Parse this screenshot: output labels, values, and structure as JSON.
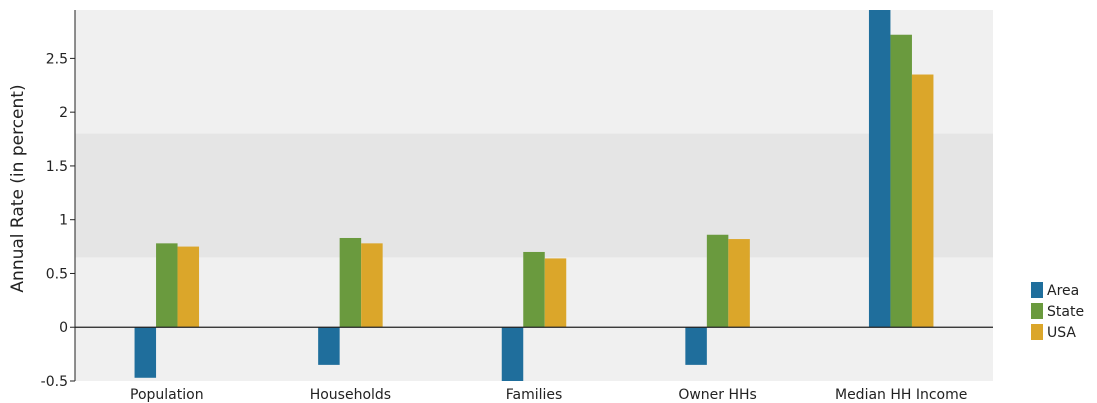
{
  "chart_data": {
    "type": "bar",
    "title": "",
    "xlabel": "",
    "ylabel": "Annual Rate (in percent)",
    "categories": [
      "Population",
      "Households",
      "Families",
      "Owner HHs",
      "Median HH Income"
    ],
    "series": [
      {
        "name": "Area",
        "color": "#1f6e9c",
        "values": [
          -0.47,
          -0.35,
          -0.5,
          -0.35,
          2.95
        ]
      },
      {
        "name": "State",
        "color": "#6a9a3e",
        "values": [
          0.78,
          0.83,
          0.7,
          0.86,
          2.72
        ]
      },
      {
        "name": "USA",
        "color": "#dba62a",
        "values": [
          0.75,
          0.78,
          0.64,
          0.82,
          2.35
        ]
      }
    ],
    "ylim": [
      -0.5,
      2.95
    ],
    "yticks": [
      -0.5,
      0,
      0.5,
      1,
      1.5,
      2,
      2.5
    ],
    "ytick_labels": [
      "-0.5",
      "0",
      "0.5",
      "1",
      "1.5",
      "2",
      "2.5"
    ],
    "highlight_band": [
      0.65,
      1.8
    ],
    "legend_position": "right",
    "grid": false,
    "background_color": "#f0f0f0",
    "band_color": "#e5e5e5"
  }
}
